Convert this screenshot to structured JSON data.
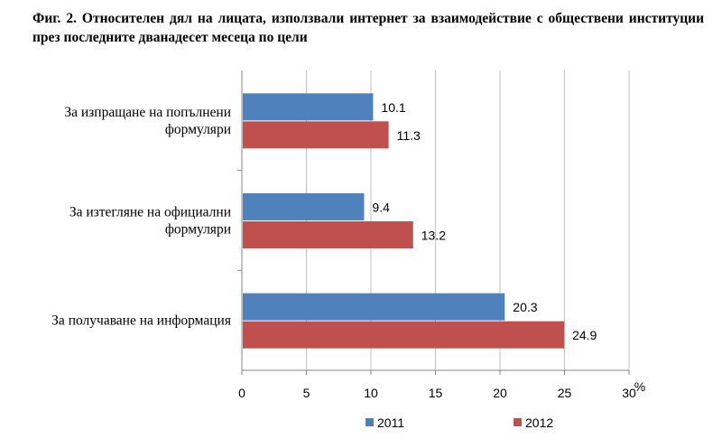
{
  "chart_data": {
    "type": "bar",
    "orientation": "horizontal",
    "title": "Фиг. 2. Относителен дял на лицата, използвали интернет за взаимодействие с обществени институции през последните дванадесет месеца по цели",
    "categories": [
      "За изпращане на попълнени формуляри",
      "За изтегляне на официални формуляри",
      "За получаване на информация"
    ],
    "category_lines": [
      [
        "За изпращане на попълнени",
        "формуляри"
      ],
      [
        "За изтегляне на официални",
        "формуляри"
      ],
      [
        "За получаване на информация"
      ]
    ],
    "series": [
      {
        "name": "2011",
        "values": [
          10.1,
          9.4,
          20.3
        ],
        "value_labels": [
          "10.1",
          "9.4",
          "20.3"
        ]
      },
      {
        "name": "2012",
        "values": [
          11.3,
          13.2,
          24.9
        ],
        "value_labels": [
          "11.3",
          "13.2",
          "24.9"
        ]
      }
    ],
    "xlim": [
      0,
      30
    ],
    "xticks": [
      "0",
      "5",
      "10",
      "15",
      "20",
      "25",
      "30"
    ],
    "xunit": "%",
    "grid": true,
    "legend": "bottom",
    "colors": {
      "2011": "#4F81BD",
      "2012": "#C0504D",
      "grid": "#C0C0C0"
    }
  }
}
